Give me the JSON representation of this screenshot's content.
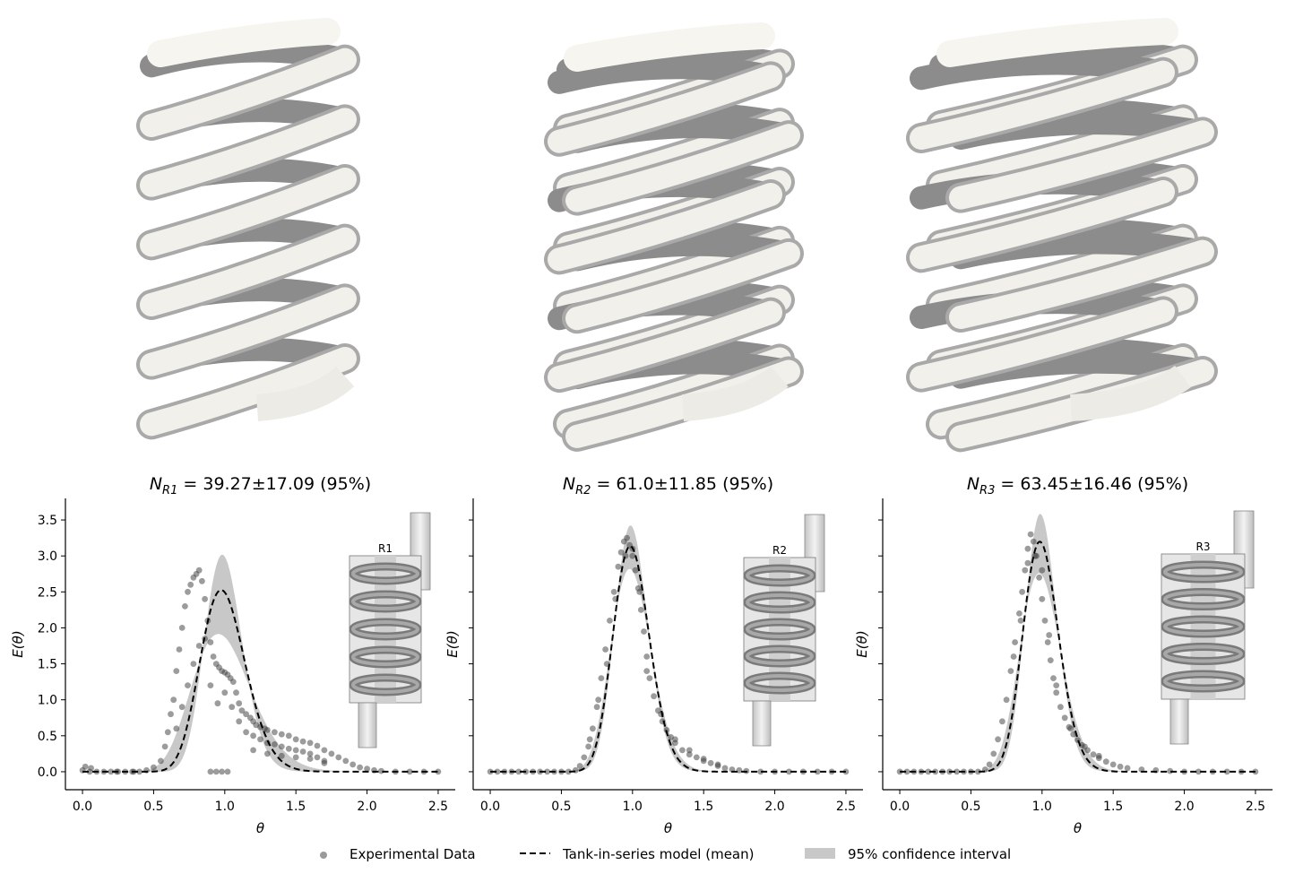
{
  "colors": {
    "coil_light": "#f2f0ea",
    "coil_shadow": "#8e8e8e",
    "points": "#3a3a3a",
    "model_line": "#000000",
    "ci_band": "#c8c8c8",
    "inset_fill": "#dcdcdc",
    "inset_coil": "#7a7a7a"
  },
  "legend": {
    "experimental": "Experimental Data",
    "model": "Tank-in-series model (mean)",
    "ci": "95% confidence interval"
  },
  "chart_data": [
    {
      "type": "scatter",
      "title_prefix": "N",
      "title_subscript": "R1",
      "title_rest": " = 39.27±17.09 (95%)",
      "xlabel": "θ",
      "ylabel": "E(θ)",
      "xlim": [
        -0.12,
        2.62
      ],
      "ylim": [
        -0.25,
        3.8
      ],
      "xticks": [
        "0.0",
        "0.5",
        "1.0",
        "1.5",
        "2.0",
        "2.5"
      ],
      "yticks": [
        "0.0",
        "0.5",
        "1.0",
        "1.5",
        "2.0",
        "2.5",
        "3.0",
        "3.5"
      ],
      "inset_label": "R1",
      "N_mean": 39.27,
      "N_low": 22.18,
      "N_high": 56.36,
      "experimental": {
        "x": [
          0.0,
          0.05,
          0.1,
          0.15,
          0.2,
          0.25,
          0.3,
          0.35,
          0.4,
          0.45,
          0.5,
          0.55,
          0.58,
          0.6,
          0.62,
          0.64,
          0.66,
          0.68,
          0.7,
          0.72,
          0.74,
          0.76,
          0.78,
          0.8,
          0.82,
          0.84,
          0.86,
          0.88,
          0.9,
          0.92,
          0.94,
          0.96,
          0.98,
          1.0,
          1.02,
          1.04,
          1.06,
          1.08,
          1.1,
          1.12,
          1.15,
          1.18,
          1.2,
          1.22,
          1.25,
          1.28,
          1.3,
          1.35,
          1.4,
          1.45,
          1.5,
          1.55,
          1.6,
          1.65,
          1.7,
          1.75,
          1.8,
          1.85,
          1.9,
          1.95,
          2.0,
          2.05,
          2.1,
          2.2,
          2.3,
          2.4,
          2.5,
          0.66,
          0.7,
          0.74,
          0.78,
          0.82,
          0.86,
          0.9,
          0.95,
          1.0,
          1.05,
          1.1,
          1.15,
          1.2,
          1.25,
          1.3,
          1.35,
          1.4,
          1.45,
          1.5,
          1.55,
          1.6,
          1.65,
          1.7,
          0.9,
          0.94,
          0.98,
          1.02,
          1.2,
          1.3,
          1.4,
          1.5,
          1.6,
          1.7,
          0.02,
          0.06,
          0.24,
          0.36
        ],
        "y": [
          0.02,
          0.0,
          0.0,
          0.0,
          0.0,
          0.0,
          0.0,
          0.0,
          0.0,
          0.02,
          0.06,
          0.15,
          0.35,
          0.55,
          0.8,
          1.0,
          1.4,
          1.7,
          2.0,
          2.3,
          2.5,
          2.6,
          2.7,
          2.75,
          2.8,
          2.65,
          2.4,
          2.1,
          1.8,
          1.6,
          1.5,
          1.45,
          1.4,
          1.38,
          1.35,
          1.3,
          1.25,
          1.1,
          0.95,
          0.85,
          0.8,
          0.75,
          0.7,
          0.65,
          0.62,
          0.6,
          0.58,
          0.55,
          0.52,
          0.5,
          0.45,
          0.42,
          0.4,
          0.36,
          0.3,
          0.25,
          0.2,
          0.15,
          0.1,
          0.06,
          0.04,
          0.02,
          0.01,
          0.0,
          0.0,
          0.0,
          0.0,
          0.6,
          0.9,
          1.2,
          1.5,
          1.75,
          1.85,
          1.2,
          0.95,
          1.1,
          0.9,
          0.7,
          0.55,
          0.5,
          0.45,
          0.4,
          0.38,
          0.35,
          0.32,
          0.3,
          0.28,
          0.25,
          0.2,
          0.15,
          0.0,
          0.0,
          0.0,
          0.0,
          0.3,
          0.25,
          0.22,
          0.2,
          0.18,
          0.12,
          0.07,
          0.05,
          0.0,
          0.0
        ]
      }
    },
    {
      "type": "scatter",
      "title_prefix": "N",
      "title_subscript": "R2",
      "title_rest": " = 61.0±11.85 (95%)",
      "xlabel": "θ",
      "ylabel": "E(θ)",
      "xlim": [
        -0.12,
        2.62
      ],
      "ylim": [
        -0.25,
        3.8
      ],
      "xticks": [
        "0.0",
        "0.5",
        "1.0",
        "1.5",
        "2.0",
        "2.5"
      ],
      "yticks": [],
      "inset_label": "R2",
      "N_mean": 61.0,
      "N_low": 49.15,
      "N_high": 72.85,
      "experimental": {
        "x": [
          0.0,
          0.05,
          0.1,
          0.15,
          0.2,
          0.25,
          0.3,
          0.35,
          0.4,
          0.45,
          0.5,
          0.55,
          0.6,
          0.63,
          0.66,
          0.69,
          0.72,
          0.75,
          0.78,
          0.81,
          0.84,
          0.87,
          0.9,
          0.92,
          0.94,
          0.96,
          0.98,
          1.0,
          1.02,
          1.04,
          1.06,
          1.08,
          1.1,
          1.12,
          1.15,
          1.18,
          1.21,
          1.24,
          1.27,
          1.3,
          1.35,
          1.4,
          1.45,
          1.5,
          1.55,
          1.6,
          1.65,
          1.7,
          1.75,
          1.8,
          1.9,
          2.0,
          2.1,
          2.2,
          2.3,
          2.4,
          2.5,
          0.7,
          0.76,
          0.82,
          0.88,
          0.95,
          1.0,
          1.05,
          1.1,
          1.2,
          1.3,
          1.4,
          1.5,
          1.6
        ],
        "y": [
          0.0,
          0.0,
          0.0,
          0.0,
          0.0,
          0.0,
          0.0,
          0.0,
          0.0,
          0.0,
          0.0,
          0.0,
          0.02,
          0.08,
          0.2,
          0.35,
          0.6,
          0.9,
          1.3,
          1.7,
          2.1,
          2.5,
          2.85,
          3.05,
          3.2,
          3.25,
          3.15,
          3.0,
          2.8,
          2.55,
          2.25,
          1.95,
          1.6,
          1.3,
          1.05,
          0.85,
          0.7,
          0.58,
          0.48,
          0.4,
          0.3,
          0.24,
          0.2,
          0.15,
          0.12,
          0.08,
          0.05,
          0.03,
          0.02,
          0.01,
          0.0,
          0.0,
          0.0,
          0.0,
          0.0,
          0.0,
          0.0,
          0.45,
          1.0,
          1.5,
          2.4,
          3.0,
          3.1,
          2.5,
          1.4,
          0.8,
          0.45,
          0.3,
          0.18,
          0.1
        ]
      }
    },
    {
      "type": "scatter",
      "title_prefix": "N",
      "title_subscript": "R3",
      "title_rest": " = 63.45±16.46 (95%)",
      "xlabel": "θ",
      "ylabel": "E(θ)",
      "xlim": [
        -0.12,
        2.62
      ],
      "ylim": [
        -0.25,
        3.8
      ],
      "xticks": [
        "0.0",
        "0.5",
        "1.0",
        "1.5",
        "2.0",
        "2.5"
      ],
      "yticks": [],
      "inset_label": "R3",
      "N_mean": 63.45,
      "N_low": 46.99,
      "N_high": 79.91,
      "experimental": {
        "x": [
          0.0,
          0.05,
          0.1,
          0.15,
          0.2,
          0.25,
          0.3,
          0.35,
          0.4,
          0.45,
          0.5,
          0.55,
          0.6,
          0.63,
          0.66,
          0.69,
          0.72,
          0.75,
          0.78,
          0.81,
          0.84,
          0.86,
          0.88,
          0.9,
          0.92,
          0.94,
          0.96,
          0.98,
          1.0,
          1.02,
          1.04,
          1.06,
          1.08,
          1.1,
          1.13,
          1.16,
          1.19,
          1.22,
          1.25,
          1.28,
          1.32,
          1.36,
          1.4,
          1.45,
          1.5,
          1.55,
          1.6,
          1.7,
          1.8,
          1.9,
          2.0,
          2.1,
          2.2,
          2.3,
          2.4,
          2.5,
          0.8,
          0.85,
          0.9,
          0.95,
          1.0,
          1.05,
          1.1,
          1.2,
          1.3,
          1.4
        ],
        "y": [
          0.0,
          0.0,
          0.0,
          0.0,
          0.0,
          0.0,
          0.0,
          0.0,
          0.0,
          0.0,
          0.0,
          0.0,
          0.03,
          0.1,
          0.25,
          0.45,
          0.7,
          1.0,
          1.4,
          1.8,
          2.2,
          2.5,
          2.8,
          3.1,
          3.3,
          3.2,
          3.0,
          2.7,
          2.4,
          2.1,
          1.8,
          1.55,
          1.3,
          1.1,
          0.9,
          0.75,
          0.62,
          0.52,
          0.44,
          0.37,
          0.3,
          0.24,
          0.19,
          0.14,
          0.1,
          0.07,
          0.05,
          0.03,
          0.02,
          0.01,
          0.0,
          0.0,
          0.0,
          0.0,
          0.0,
          0.0,
          1.6,
          2.1,
          2.9,
          3.0,
          2.8,
          1.9,
          1.2,
          0.6,
          0.35,
          0.22
        ]
      }
    }
  ]
}
